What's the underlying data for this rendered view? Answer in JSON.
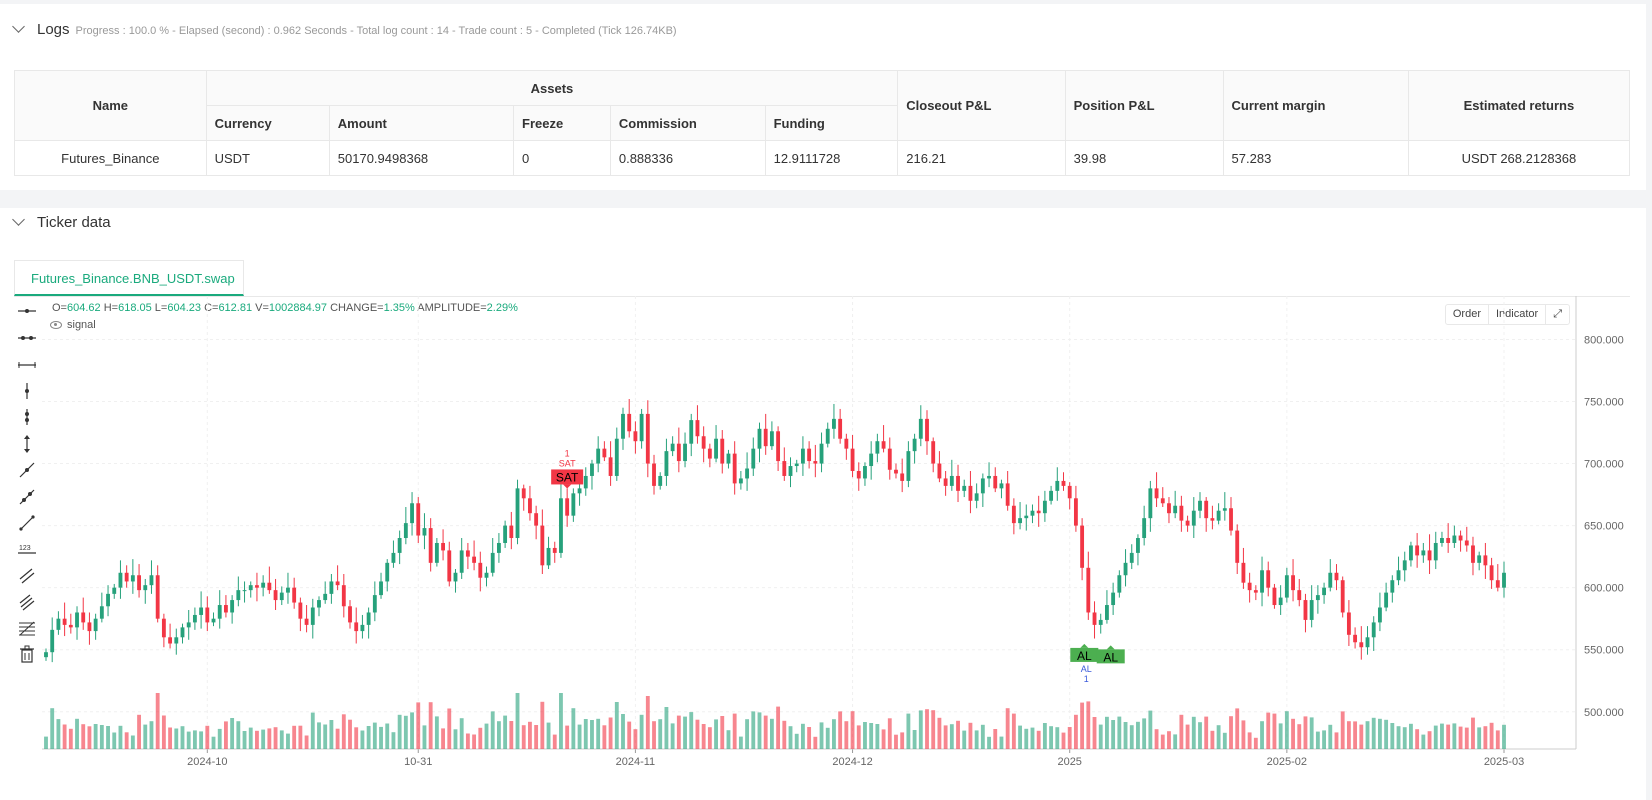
{
  "logs": {
    "title": "Logs",
    "meta": "Progress : 100.0 % - Elapsed (second) : 0.962  Seconds - Total log count : 14 - Trade count : 5 - Completed (Tick 126.74KB)"
  },
  "table": {
    "headers": {
      "name": "Name",
      "assets": "Assets",
      "currency": "Currency",
      "amount": "Amount",
      "freeze": "Freeze",
      "commission": "Commission",
      "funding": "Funding",
      "closeout": "Closeout P&L",
      "position": "Position P&L",
      "margin": "Current margin",
      "returns": "Estimated returns"
    },
    "row": {
      "name": "Futures_Binance",
      "currency": "USDT",
      "amount": "50170.9498368",
      "freeze": "0",
      "commission": "0.888336",
      "funding": "12.9111728",
      "closeout": "216.21",
      "position": "39.98",
      "margin": "57.283",
      "returns": "USDT 268.2128368"
    }
  },
  "ticker": {
    "title": "Ticker data",
    "tab": "Futures_Binance.BNB_USDT.swap",
    "ohlc": {
      "o_label": "O=",
      "o": "604.62",
      "h_label": "H=",
      "h": "618.05",
      "l_label": "L=",
      "l": "604.23",
      "c_label": "C=",
      "c": "612.81",
      "v_label": "V=",
      "v": "1002884.97",
      "chg_label": "CHANGE=",
      "chg": "1.35%",
      "amp_label": "AMPLITUDE=",
      "amp": "2.29%"
    },
    "signal_label": "signal",
    "buttons": {
      "order": "Order",
      "indicator": "Indicator"
    }
  },
  "chart_data": {
    "type": "candlestick",
    "symbol": "BNB_USDT",
    "y_ticks": [
      "800.000",
      "750.000",
      "700.000",
      "650.000",
      "600.000",
      "550.000",
      "500.000"
    ],
    "y_range": [
      470,
      835
    ],
    "x_ticks": [
      "2024-10",
      "10-31",
      "2024-11",
      "2024-12",
      "2025",
      "2025-02",
      "2025-03"
    ],
    "x_tick_index": [
      26,
      60,
      95,
      130,
      165,
      200,
      235
    ],
    "up_color": "#26a17b",
    "down_color": "#f23645",
    "markers": [
      {
        "label": "SAT",
        "index": 84,
        "sub": "SAT",
        "num": "1",
        "color": "#f23645"
      },
      {
        "label": "AL",
        "index": 168,
        "sub": "AL",
        "num": "1",
        "color": "#4caf50"
      },
      {
        "label": "AL",
        "index": 170,
        "sub": "",
        "num": "",
        "color": "#4caf50"
      }
    ],
    "closes": [
      548,
      566,
      575,
      570,
      568,
      580,
      572,
      565,
      575,
      585,
      595,
      600,
      612,
      605,
      610,
      598,
      602,
      610,
      575,
      560,
      555,
      560,
      568,
      572,
      578,
      584,
      572,
      575,
      586,
      580,
      590,
      598,
      598,
      602,
      600,
      604,
      598,
      590,
      596,
      600,
      588,
      575,
      570,
      584,
      590,
      595,
      605,
      602,
      585,
      572,
      565,
      570,
      580,
      594,
      605,
      620,
      628,
      640,
      652,
      668,
      642,
      648,
      620,
      636,
      630,
      605,
      612,
      630,
      625,
      620,
      608,
      612,
      628,
      636,
      650,
      640,
      680,
      672,
      660,
      650,
      618,
      632,
      628,
      672,
      658,
      676,
      680,
      690,
      700,
      712,
      705,
      690,
      720,
      740,
      726,
      718,
      740,
      700,
      682,
      690,
      710,
      716,
      702,
      716,
      735,
      722,
      712,
      704,
      720,
      700,
      708,
      684,
      688,
      696,
      712,
      728,
      714,
      726,
      702,
      690,
      698,
      700,
      712,
      702,
      700,
      716,
      728,
      736,
      720,
      712,
      694,
      688,
      698,
      708,
      718,
      712,
      695,
      692,
      686,
      710,
      720,
      736,
      718,
      700,
      688,
      682,
      690,
      678,
      682,
      670,
      676,
      688,
      690,
      680,
      684,
      666,
      652,
      656,
      658,
      662,
      660,
      670,
      678,
      686,
      682,
      672,
      650,
      616,
      580,
      570,
      574,
      586,
      596,
      610,
      620,
      628,
      640,
      656,
      680,
      672,
      668,
      660,
      666,
      654,
      650,
      662,
      670,
      656,
      654,
      662,
      664,
      646,
      620,
      604,
      598,
      596,
      614,
      600,
      586,
      592,
      610,
      598,
      590,
      574,
      590,
      594,
      600,
      612,
      606,
      580,
      562,
      556,
      552,
      560,
      572,
      584,
      596,
      606,
      614,
      622,
      634,
      626,
      630,
      622,
      636,
      640,
      636,
      642,
      638,
      634,
      620,
      626,
      618,
      606,
      600,
      612
    ]
  }
}
